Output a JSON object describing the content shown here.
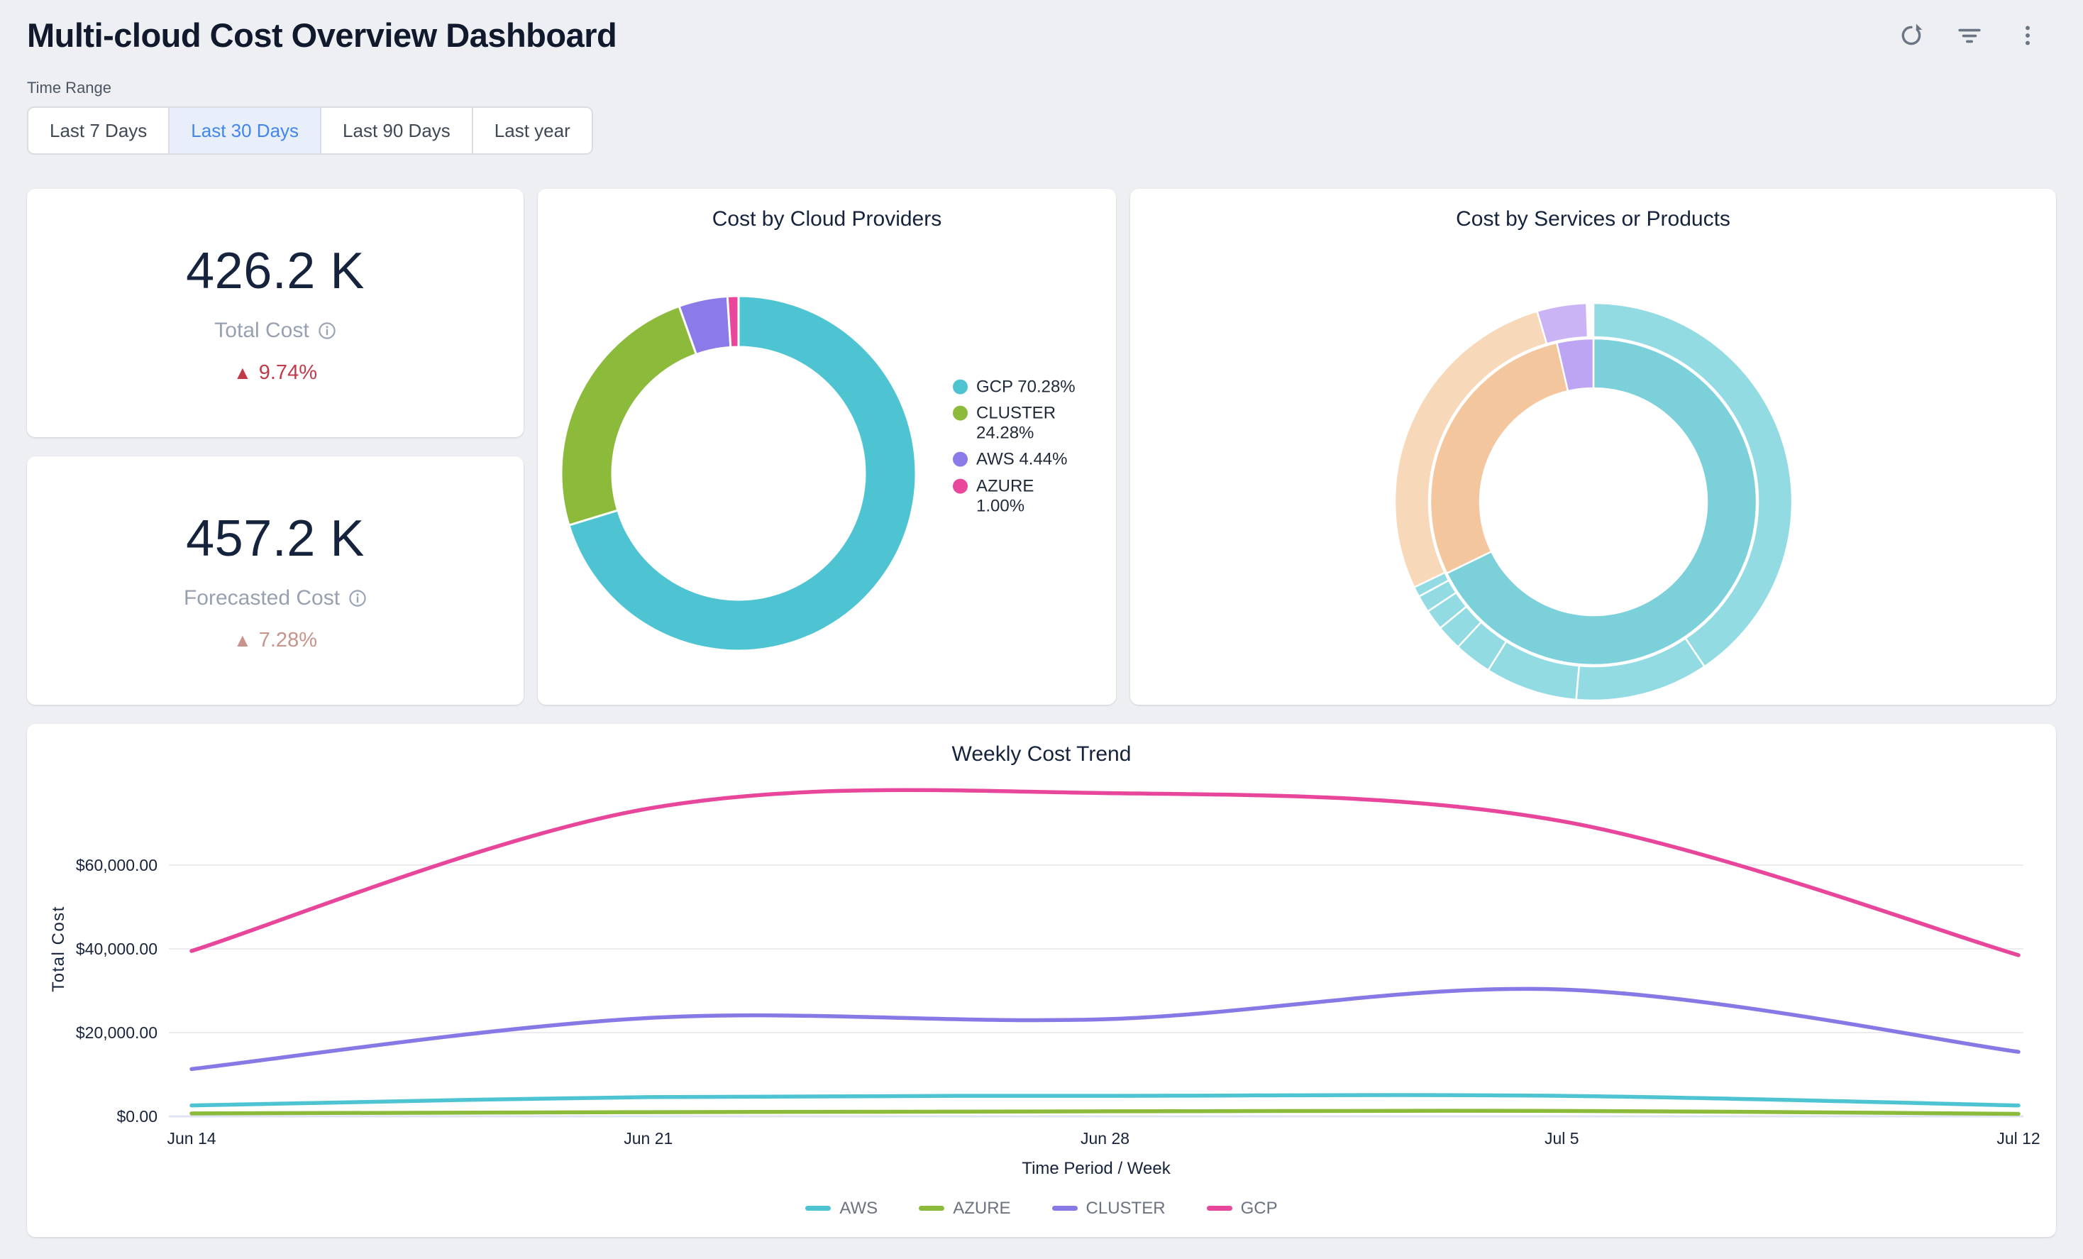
{
  "header": {
    "title": "Multi-cloud Cost Overview Dashboard",
    "actions": [
      {
        "icon": "refresh-icon"
      },
      {
        "icon": "filter-icon"
      },
      {
        "icon": "kebab-menu-icon"
      }
    ]
  },
  "time_range": {
    "label": "Time Range",
    "options": [
      "Last 7 Days",
      "Last 30 Days",
      "Last 90 Days",
      "Last year"
    ],
    "selected": "Last 30 Days",
    "selected_text_color": "#4285f0",
    "selected_bg_color": "#e8effb"
  },
  "kpis": [
    {
      "value": "426.2 K",
      "label": "Total Cost",
      "delta": "9.74%",
      "direction": "up",
      "delta_color": "#c13a4a"
    },
    {
      "value": "457.2 K",
      "label": "Forecasted Cost",
      "delta": "7.28%",
      "direction": "up",
      "delta_color": "#c8938b"
    }
  ],
  "chart_data": [
    {
      "id": "cost-by-cloud-providers",
      "type": "pie",
      "donut": true,
      "title": "Cost by Cloud Providers",
      "labels": [
        "GCP",
        "CLUSTER",
        "AWS",
        "AZURE"
      ],
      "values": [
        70.28,
        24.28,
        4.44,
        1.0
      ],
      "unit": "percent",
      "colors": [
        "#4ec4d3",
        "#8cba3a",
        "#8a7be8",
        "#e8479b"
      ],
      "legend_position": "right",
      "start_angle_deg": 0,
      "clockwise": true
    },
    {
      "id": "cost-by-services-or-products",
      "type": "pie",
      "subtype": "sunburst",
      "title": "Cost by Services or Products",
      "labels_visible": false,
      "rings": {
        "inner": [
          {
            "pct": 67.78,
            "color": "#7bd0da"
          },
          {
            "pct": 28.61,
            "color": "#f3c69e"
          },
          {
            "pct": 3.61,
            "color": "#bea5f3"
          }
        ],
        "outer": [
          {
            "pct": 40.56,
            "color": "#92dbe2"
          },
          {
            "pct": 10.83,
            "color": "#92dbe2"
          },
          {
            "pct": 7.5,
            "color": "#92dbe2"
          },
          {
            "pct": 3.06,
            "color": "#92dbe2"
          },
          {
            "pct": 2.08,
            "color": "#92dbe2"
          },
          {
            "pct": 1.67,
            "color": "#92dbe2"
          },
          {
            "pct": 1.39,
            "color": "#92dbe2"
          },
          {
            "pct": 0.83,
            "color": "#92dbe2"
          },
          {
            "pct": 27.5,
            "color": "#f7d8b8"
          },
          {
            "pct": 4.03,
            "color": "#cbb4f6"
          }
        ]
      }
    },
    {
      "id": "weekly-cost-trend",
      "type": "line",
      "title": "Weekly Cost Trend",
      "x": [
        "Jun 14",
        "Jun 21",
        "Jun 28",
        "Jul 5",
        "Jul 12"
      ],
      "series": [
        {
          "name": "AWS",
          "color": "#4ec4d3",
          "values": [
            2600,
            4600,
            4900,
            4900,
            2600
          ]
        },
        {
          "name": "AZURE",
          "color": "#8cba3a",
          "values": [
            700,
            1000,
            1200,
            1300,
            600
          ]
        },
        {
          "name": "CLUSTER",
          "color": "#8679e6",
          "values": [
            11300,
            23500,
            23200,
            30300,
            15400
          ]
        },
        {
          "name": "GCP",
          "color": "#e8469a",
          "values": [
            39500,
            73500,
            77200,
            70500,
            38500
          ]
        }
      ],
      "xlabel": "Time Period / Week",
      "ylabel": "Total Cost",
      "yticks": [
        {
          "value": 0,
          "label": "$0.00"
        },
        {
          "value": 20000,
          "label": "$20,000.00"
        },
        {
          "value": 40000,
          "label": "$40,000.00"
        },
        {
          "value": 60000,
          "label": "$60,000.00"
        }
      ],
      "ylim": [
        0,
        80000
      ],
      "grid": "horizontal",
      "legend_position": "bottom"
    }
  ]
}
